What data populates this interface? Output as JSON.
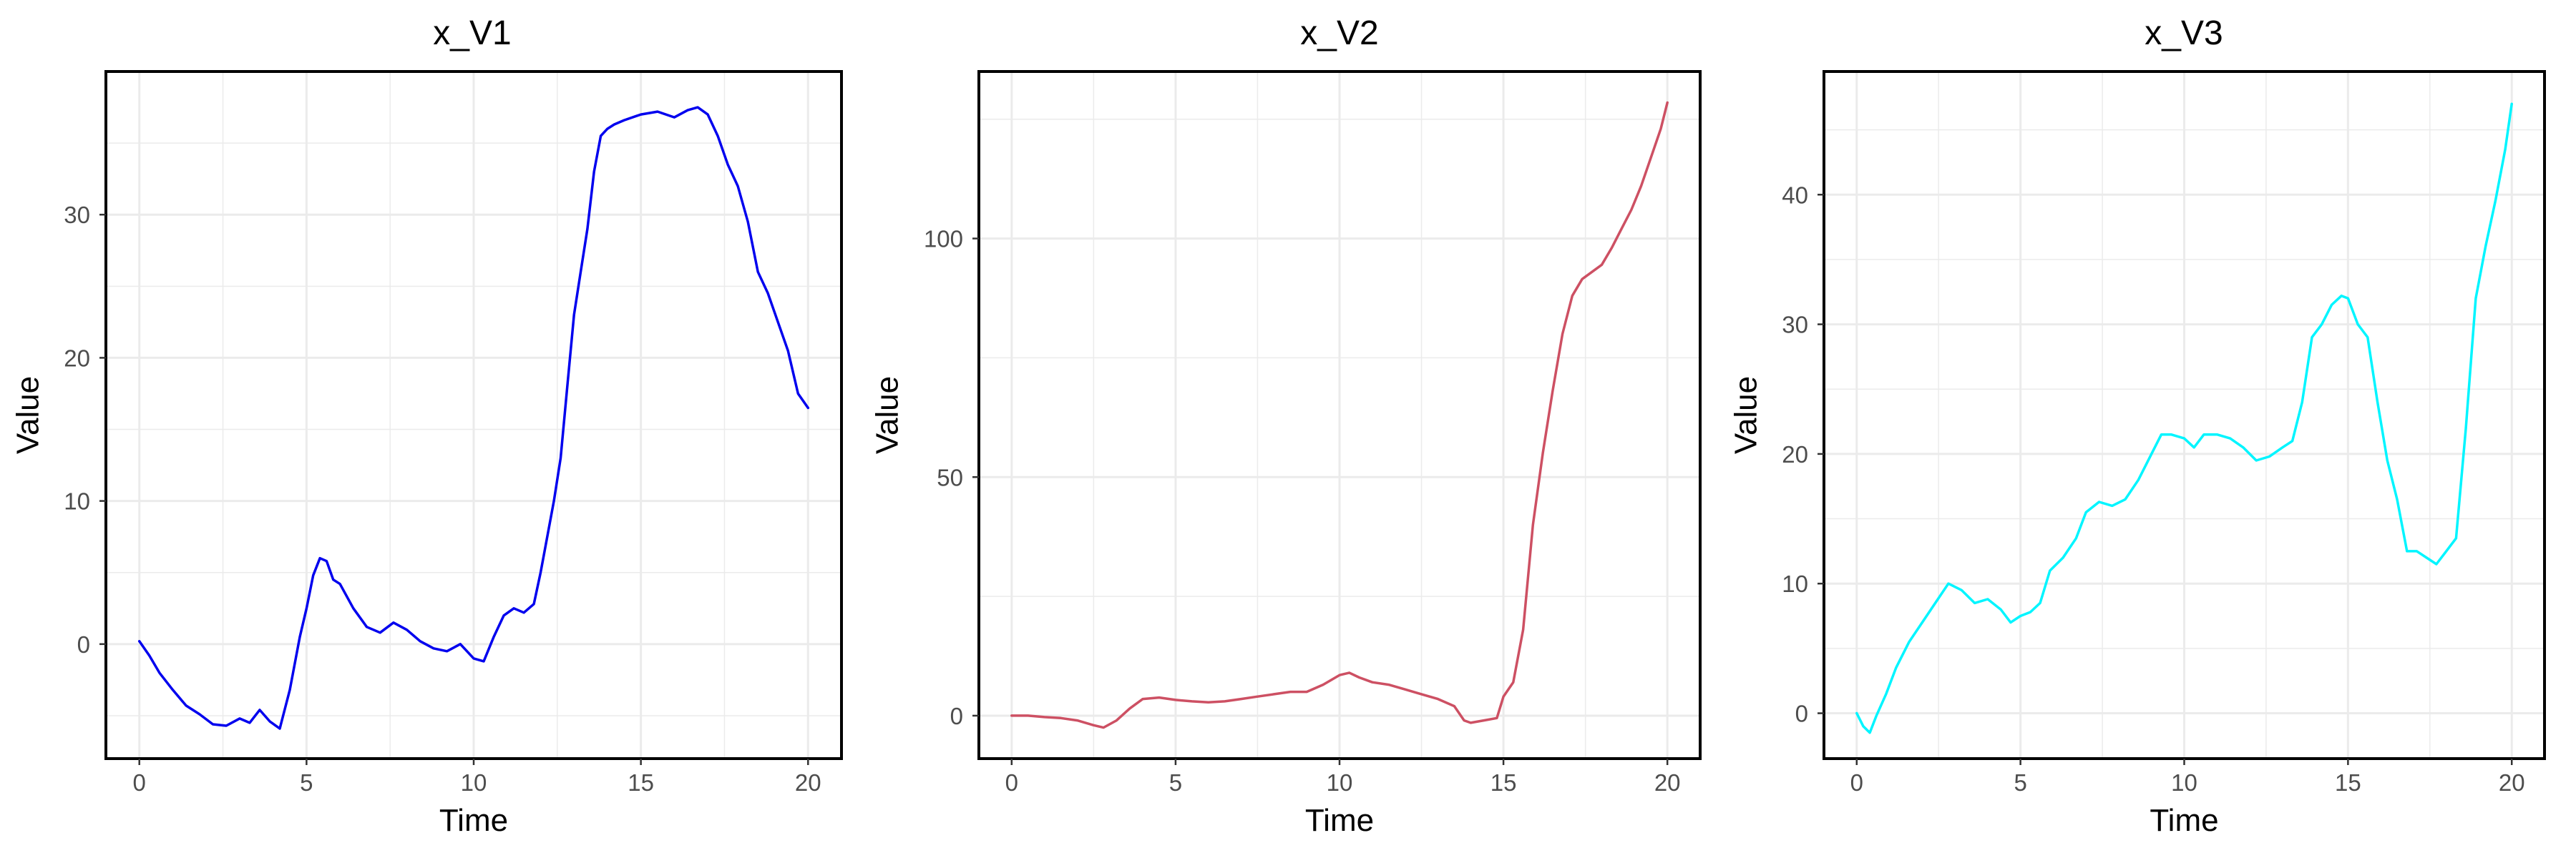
{
  "chart_data": [
    {
      "type": "line",
      "title": "x_V1",
      "xlabel": "Time",
      "ylabel": "Value",
      "color": "#0000ee",
      "xlim": [
        -1.0,
        21.0
      ],
      "ylim": [
        -8.0,
        40.0
      ],
      "xticks": [
        0,
        5,
        10,
        15,
        20
      ],
      "yticks": [
        0,
        10,
        20,
        30
      ],
      "grid": true,
      "series": [
        {
          "x": [
            0,
            0.3,
            0.6,
            1.0,
            1.4,
            1.8,
            2.2,
            2.6,
            3.0,
            3.3,
            3.6,
            3.9,
            4.2,
            4.5,
            4.8,
            5.0,
            5.2,
            5.4,
            5.6,
            5.8,
            6.0,
            6.4,
            6.8,
            7.2,
            7.6,
            8.0,
            8.4,
            8.8,
            9.2,
            9.6,
            10.0,
            10.3,
            10.6,
            10.9,
            11.2,
            11.5,
            11.8,
            12.0,
            12.2,
            12.4,
            12.6,
            12.8,
            13.0,
            13.2,
            13.4,
            13.6,
            13.8,
            14.0,
            14.2,
            14.5,
            15.0,
            15.5,
            16.0,
            16.4,
            16.7,
            17.0,
            17.3,
            17.6,
            17.9,
            18.2,
            18.5,
            18.8,
            19.1,
            19.4,
            19.7,
            20.0
          ],
          "y": [
            0.2,
            -0.8,
            -2.0,
            -3.2,
            -4.3,
            -4.9,
            -5.6,
            -5.7,
            -5.2,
            -5.5,
            -4.6,
            -5.4,
            -5.9,
            -3.2,
            0.5,
            2.5,
            4.8,
            6.0,
            5.8,
            4.5,
            4.2,
            2.5,
            1.2,
            0.8,
            1.5,
            1.0,
            0.2,
            -0.3,
            -0.5,
            0.0,
            -1.0,
            -1.2,
            0.5,
            2.0,
            2.5,
            2.2,
            2.8,
            5.0,
            7.5,
            10.0,
            13.0,
            18.0,
            23.0,
            26.0,
            29.0,
            33.0,
            35.5,
            36.0,
            36.3,
            36.6,
            37.0,
            37.2,
            36.8,
            37.3,
            37.5,
            37.0,
            35.5,
            33.5,
            32.0,
            29.5,
            26.0,
            24.5,
            22.5,
            20.5,
            17.5,
            16.5
          ]
        }
      ]
    },
    {
      "type": "line",
      "title": "x_V2",
      "xlabel": "Time",
      "ylabel": "Value",
      "color": "#cd5063",
      "xlim": [
        -1.0,
        21.0
      ],
      "ylim": [
        -9.0,
        135.0
      ],
      "xticks": [
        0,
        5,
        10,
        15,
        20
      ],
      "yticks": [
        0,
        50,
        100
      ],
      "grid": true,
      "series": [
        {
          "x": [
            0,
            0.5,
            1.0,
            1.5,
            2.0,
            2.5,
            2.8,
            3.2,
            3.6,
            4.0,
            4.5,
            5.0,
            5.5,
            6.0,
            6.5,
            7.0,
            7.5,
            8.0,
            8.5,
            9.0,
            9.5,
            10.0,
            10.3,
            10.6,
            11.0,
            11.5,
            12.0,
            12.5,
            13.0,
            13.5,
            13.8,
            14.0,
            14.4,
            14.8,
            15.0,
            15.3,
            15.6,
            15.9,
            16.2,
            16.5,
            16.8,
            17.1,
            17.4,
            17.7,
            18.0,
            18.3,
            18.6,
            18.9,
            19.2,
            19.5,
            19.8,
            20.0
          ],
          "y": [
            0.0,
            0.0,
            -0.3,
            -0.5,
            -1.0,
            -2.0,
            -2.5,
            -1.0,
            1.5,
            3.5,
            3.8,
            3.3,
            3.0,
            2.8,
            3.0,
            3.5,
            4.0,
            4.5,
            5.0,
            5.0,
            6.5,
            8.5,
            9.0,
            8.0,
            7.0,
            6.5,
            5.5,
            4.5,
            3.5,
            2.0,
            -1.0,
            -1.5,
            -1.0,
            -0.5,
            4.0,
            7.0,
            18.0,
            40.0,
            55.0,
            68.0,
            80.0,
            88.0,
            91.5,
            93.0,
            94.5,
            98.0,
            102.0,
            106.0,
            111.0,
            117.0,
            123.0,
            128.5
          ]
        }
      ]
    },
    {
      "type": "line",
      "title": "x_V3",
      "xlabel": "Time",
      "ylabel": "Value",
      "color": "#00f5ff",
      "xlim": [
        -1.0,
        21.0
      ],
      "ylim": [
        -3.5,
        49.5
      ],
      "xticks": [
        0,
        5,
        10,
        15,
        20
      ],
      "yticks": [
        0,
        10,
        20,
        30,
        40
      ],
      "grid": true,
      "series": [
        {
          "x": [
            0,
            0.2,
            0.4,
            0.6,
            0.9,
            1.2,
            1.6,
            2.0,
            2.4,
            2.8,
            3.2,
            3.6,
            4.0,
            4.4,
            4.7,
            5.0,
            5.3,
            5.6,
            5.9,
            6.3,
            6.7,
            7.0,
            7.4,
            7.8,
            8.2,
            8.6,
            9.0,
            9.3,
            9.6,
            10.0,
            10.3,
            10.6,
            11.0,
            11.4,
            11.8,
            12.2,
            12.6,
            13.0,
            13.3,
            13.6,
            13.9,
            14.2,
            14.5,
            14.8,
            15.0,
            15.3,
            15.6,
            15.9,
            16.2,
            16.5,
            16.8,
            17.1,
            17.4,
            17.7,
            18.0,
            18.3,
            18.6,
            18.9,
            19.2,
            19.5,
            19.8,
            20.0
          ],
          "y": [
            0.0,
            -1.0,
            -1.5,
            -0.2,
            1.5,
            3.5,
            5.5,
            7.0,
            8.5,
            10.0,
            9.5,
            8.5,
            8.8,
            8.0,
            7.0,
            7.5,
            7.8,
            8.5,
            11.0,
            12.0,
            13.5,
            15.5,
            16.3,
            16.0,
            16.5,
            18.0,
            20.0,
            21.5,
            21.5,
            21.2,
            20.5,
            21.5,
            21.5,
            21.2,
            20.5,
            19.5,
            19.8,
            20.5,
            21.0,
            24.0,
            29.0,
            30.0,
            31.5,
            32.2,
            32.0,
            30.0,
            29.0,
            24.0,
            19.5,
            16.5,
            12.5,
            12.5,
            12.0,
            11.5,
            12.5,
            13.5,
            22.0,
            32.0,
            36.0,
            39.5,
            43.5,
            47.0
          ]
        }
      ]
    }
  ]
}
